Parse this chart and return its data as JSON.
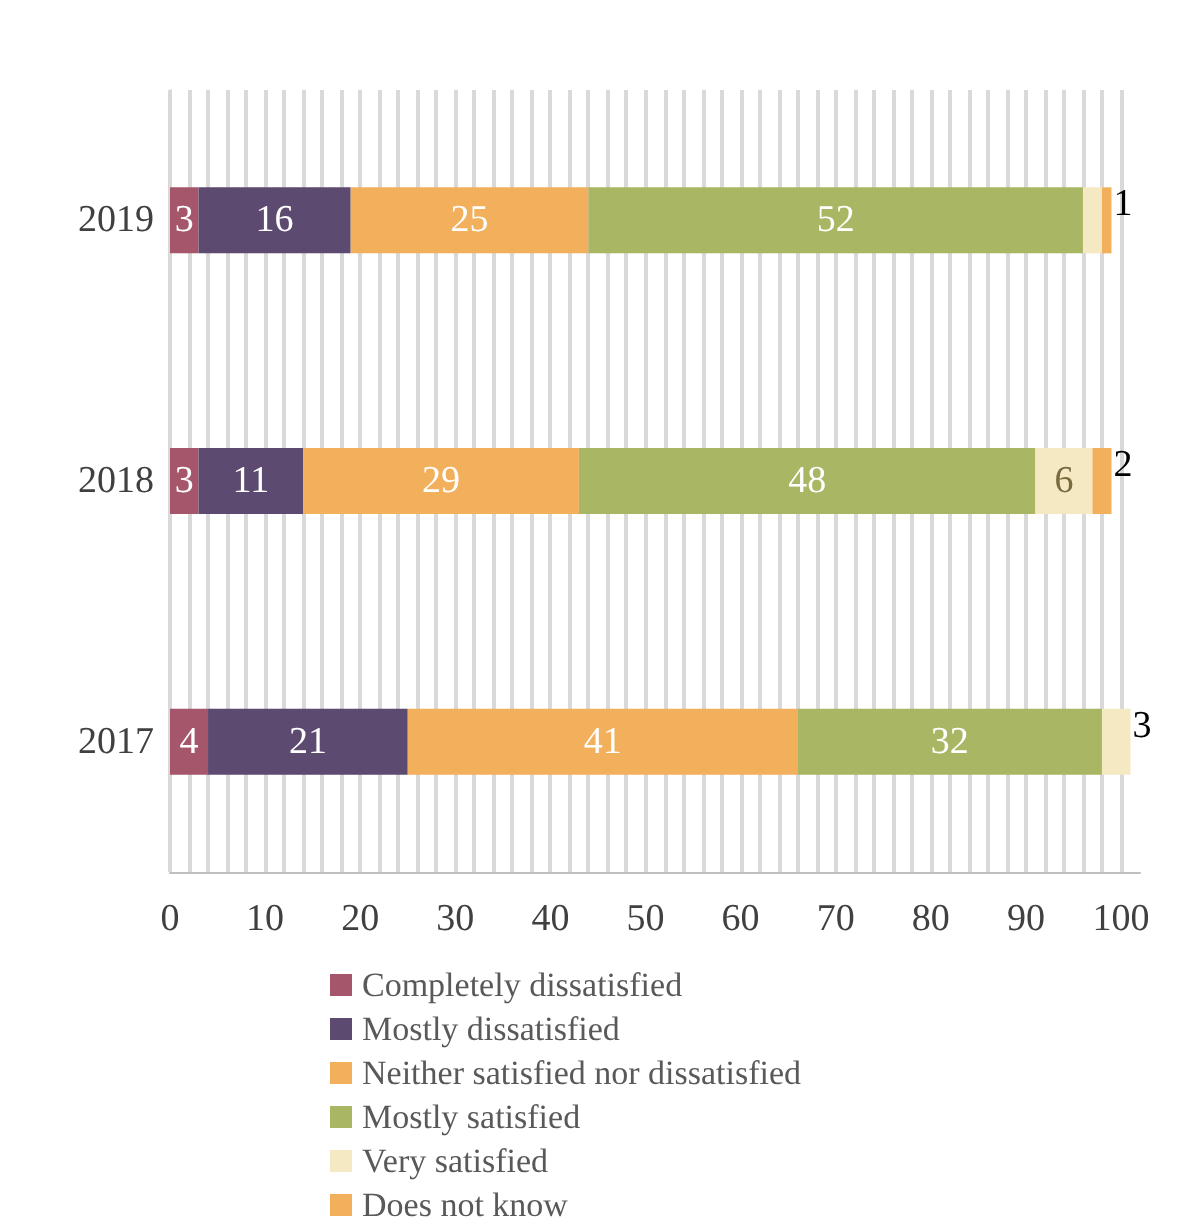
{
  "chart_data": {
    "type": "bar",
    "orientation": "horizontal",
    "stacked": true,
    "categories": [
      "2019",
      "2018",
      "2017"
    ],
    "series": [
      {
        "name": "Completely dissatisfied",
        "color": "#a5566a",
        "values": [
          3,
          3,
          4
        ],
        "value_labels": [
          "3",
          "3",
          "4"
        ]
      },
      {
        "name": "Mostly dissatisfied",
        "color": "#5c4a70",
        "values": [
          16,
          11,
          21
        ],
        "value_labels": [
          "16",
          "11",
          "21"
        ]
      },
      {
        "name": "Neither satisfied nor dissatisfied",
        "color": "#f2af5c",
        "values": [
          25,
          29,
          41
        ],
        "value_labels": [
          "25",
          "29",
          "41"
        ]
      },
      {
        "name": "Mostly satisfied",
        "color": "#a9b663",
        "values": [
          52,
          48,
          32
        ],
        "value_labels": [
          "52",
          "48",
          "32"
        ]
      },
      {
        "name": "Very satisfied",
        "color": "#f4e9c3",
        "values": [
          2,
          6,
          3
        ],
        "value_labels": [
          null,
          "6",
          "3"
        ]
      },
      {
        "name": "Does not know",
        "color": "#f2af5c",
        "values": [
          1,
          2,
          null
        ],
        "value_labels": [
          "1",
          "2",
          null
        ]
      }
    ],
    "xlim": [
      0,
      102
    ],
    "xticks": [
      0,
      {
        "value": 2,
        "label": null
      },
      {
        "value": 4,
        "label": null
      },
      {
        "value": 6,
        "label": null
      },
      {
        "value": 8,
        "label": null
      },
      10,
      {
        "value": 12,
        "label": null
      },
      {
        "value": 14,
        "label": null
      },
      {
        "value": 16,
        "label": null
      },
      {
        "value": 18,
        "label": null
      },
      20,
      {
        "value": 22,
        "label": null
      },
      {
        "value": 24,
        "label": null
      },
      {
        "value": 26,
        "label": null
      },
      {
        "value": 28,
        "label": null
      },
      30,
      {
        "value": 32,
        "label": null
      },
      {
        "value": 34,
        "label": null
      },
      {
        "value": 36,
        "label": null
      },
      {
        "value": 38,
        "label": null
      },
      40,
      {
        "value": 42,
        "label": null
      },
      {
        "value": 44,
        "label": null
      },
      {
        "value": 46,
        "label": null
      },
      {
        "value": 48,
        "label": null
      },
      50,
      {
        "value": 52,
        "label": null
      },
      {
        "value": 54,
        "label": null
      },
      {
        "value": 56,
        "label": null
      },
      {
        "value": 58,
        "label": null
      },
      60,
      {
        "value": 62,
        "label": null
      },
      {
        "value": 64,
        "label": null
      },
      {
        "value": 66,
        "label": null
      },
      {
        "value": 68,
        "label": null
      },
      70,
      {
        "value": 72,
        "label": null
      },
      {
        "value": 74,
        "label": null
      },
      {
        "value": 76,
        "label": null
      },
      {
        "value": 78,
        "label": null
      },
      80,
      {
        "value": 82,
        "label": null
      },
      {
        "value": 84,
        "label": null
      },
      {
        "value": 86,
        "label": null
      },
      {
        "value": 88,
        "label": null
      },
      90,
      {
        "value": 92,
        "label": null
      },
      {
        "value": 94,
        "label": null
      },
      {
        "value": 96,
        "label": null
      },
      {
        "value": 98,
        "label": null
      },
      100
    ],
    "grid": "x",
    "legend": "bottom"
  }
}
